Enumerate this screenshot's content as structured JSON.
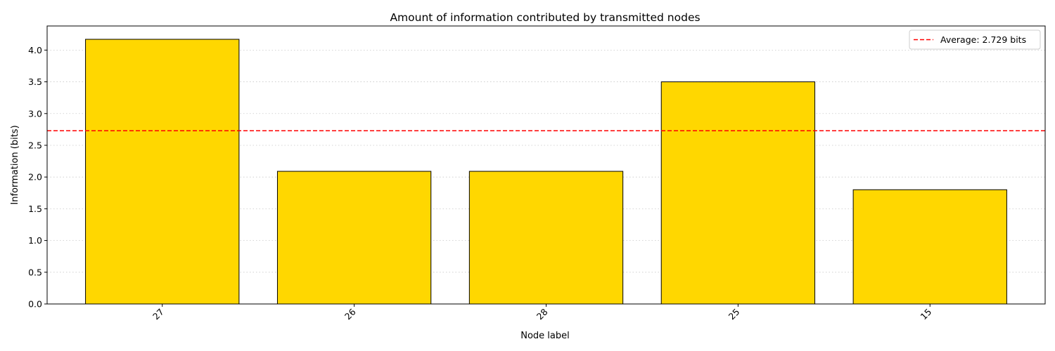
{
  "chart_data": {
    "type": "bar",
    "title": "Amount of information contributed by transmitted nodes",
    "xlabel": "Node label",
    "ylabel": "Information (bits)",
    "categories": [
      "27",
      "26",
      "28",
      "25",
      "15"
    ],
    "values": [
      4.17,
      2.09,
      2.09,
      3.5,
      1.8
    ],
    "ylim": [
      0,
      4.38
    ],
    "yticks": [
      0.0,
      0.5,
      1.0,
      1.5,
      2.0,
      2.5,
      3.0,
      3.5,
      4.0
    ],
    "ytick_labels": [
      "0.0",
      "0.5",
      "1.0",
      "1.5",
      "2.0",
      "2.5",
      "3.0",
      "3.5",
      "4.0"
    ],
    "grid": "y-dotted",
    "bar_color": "#FFD700",
    "bar_edge_color": "#000000",
    "average": {
      "value": 2.729,
      "label": "Average: 2.729 bits",
      "color": "#FF0000",
      "style": "dashed"
    },
    "legend_placement": "top-right"
  }
}
